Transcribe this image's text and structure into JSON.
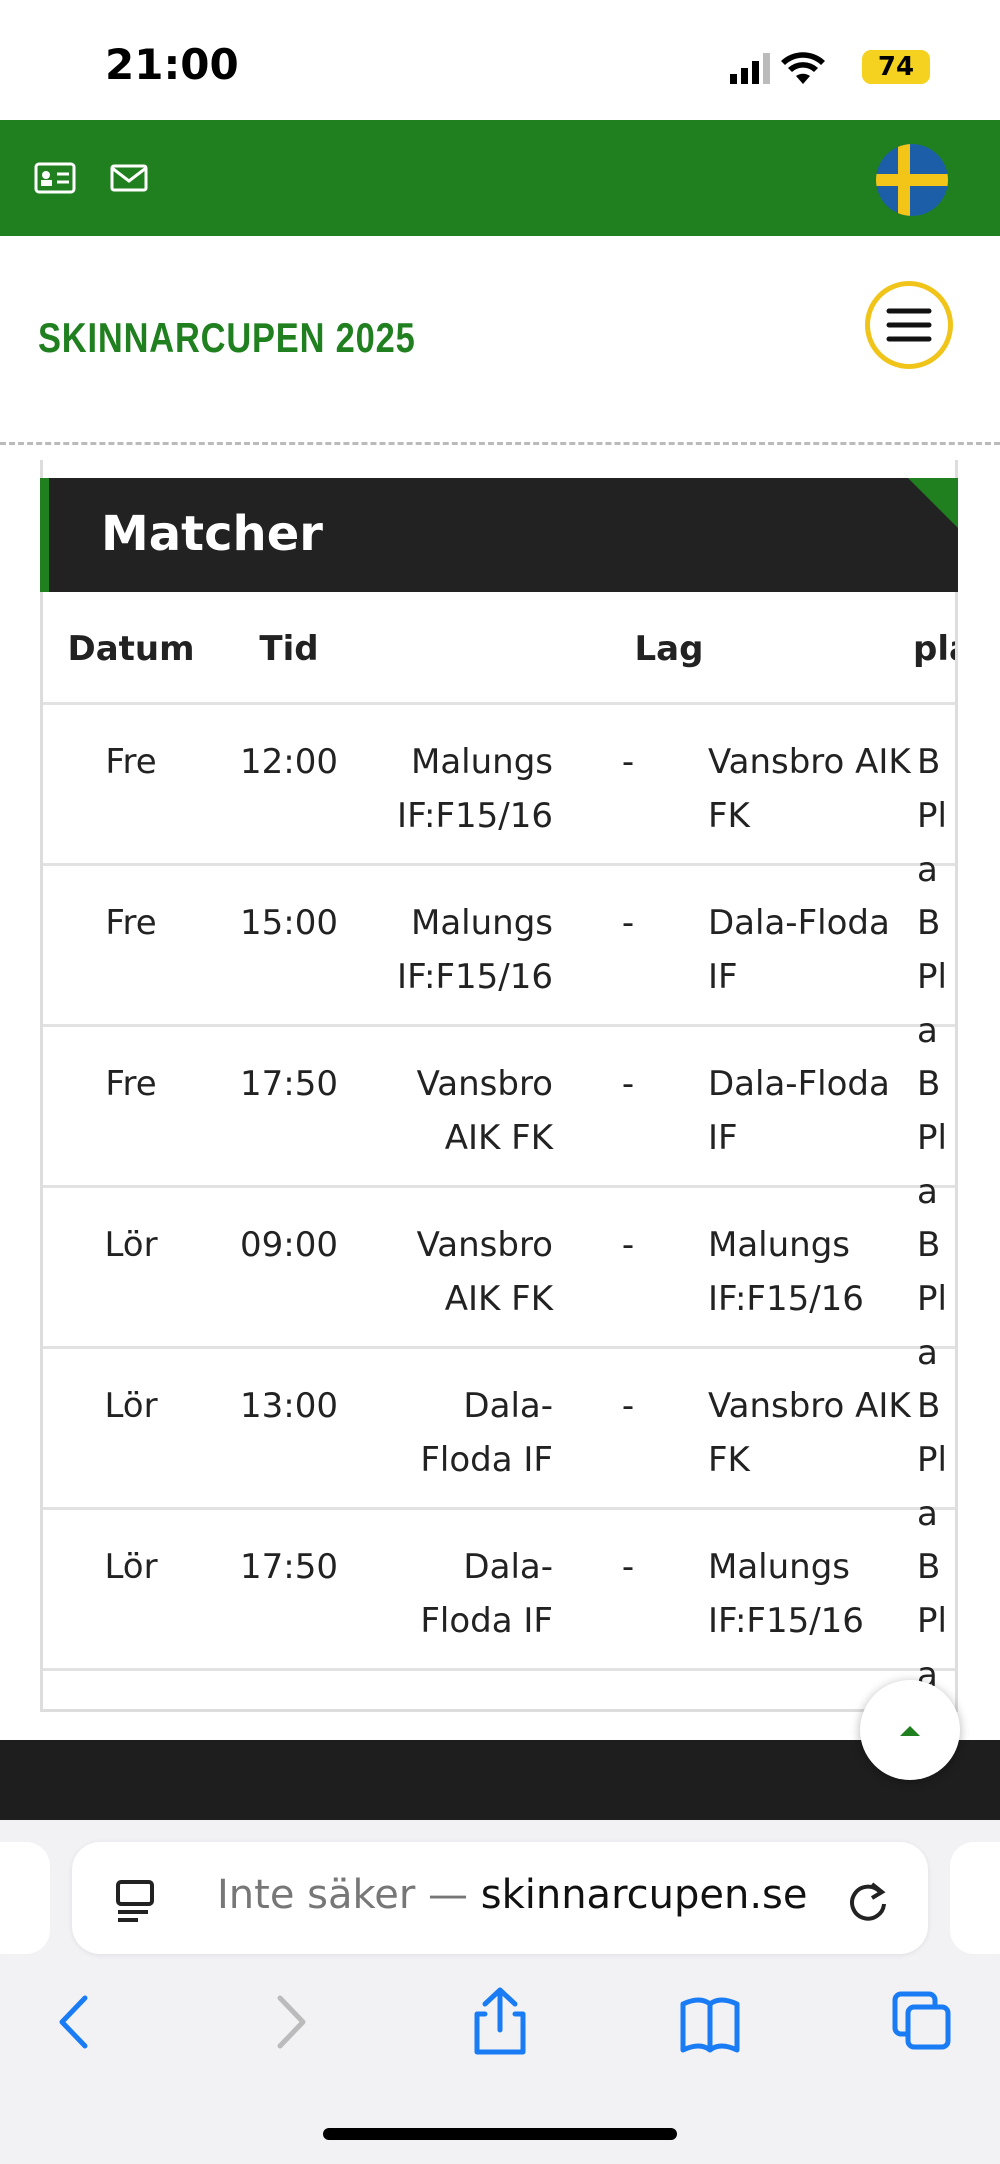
{
  "status": {
    "time": "21:00",
    "battery": "74"
  },
  "header": {
    "title": "SKINNARCUPEN 2025"
  },
  "section": {
    "title": "Matcher"
  },
  "table": {
    "headers": [
      "Datum",
      "Tid",
      "Lag",
      "pla"
    ],
    "rows": [
      [
        "Fre",
        "12:00",
        "Malungs IF:F15/16",
        "-",
        "Vansbro AIK FK",
        "B Pla"
      ],
      [
        "Fre",
        "15:00",
        "Malungs IF:F15/16",
        "-",
        "Dala-Floda IF",
        "B Pla"
      ],
      [
        "Fre",
        "17:50",
        "Vansbro AIK FK",
        "-",
        "Dala-Floda IF",
        "B Pla"
      ],
      [
        "Lör",
        "09:00",
        "Vansbro AIK FK",
        "-",
        "Malungs IF:F15/16",
        "B Pla"
      ],
      [
        "Lör",
        "13:00",
        "Dala-Floda IF",
        "-",
        "Vansbro AIK FK",
        "B Pla"
      ],
      [
        "Lör",
        "17:50",
        "Dala-Floda IF",
        "-",
        "Malungs IF:F15/16",
        "B Pla"
      ]
    ]
  },
  "browser": {
    "url_prefix": "Inte säker —",
    "url_domain": "skinnarcupen.se"
  }
}
